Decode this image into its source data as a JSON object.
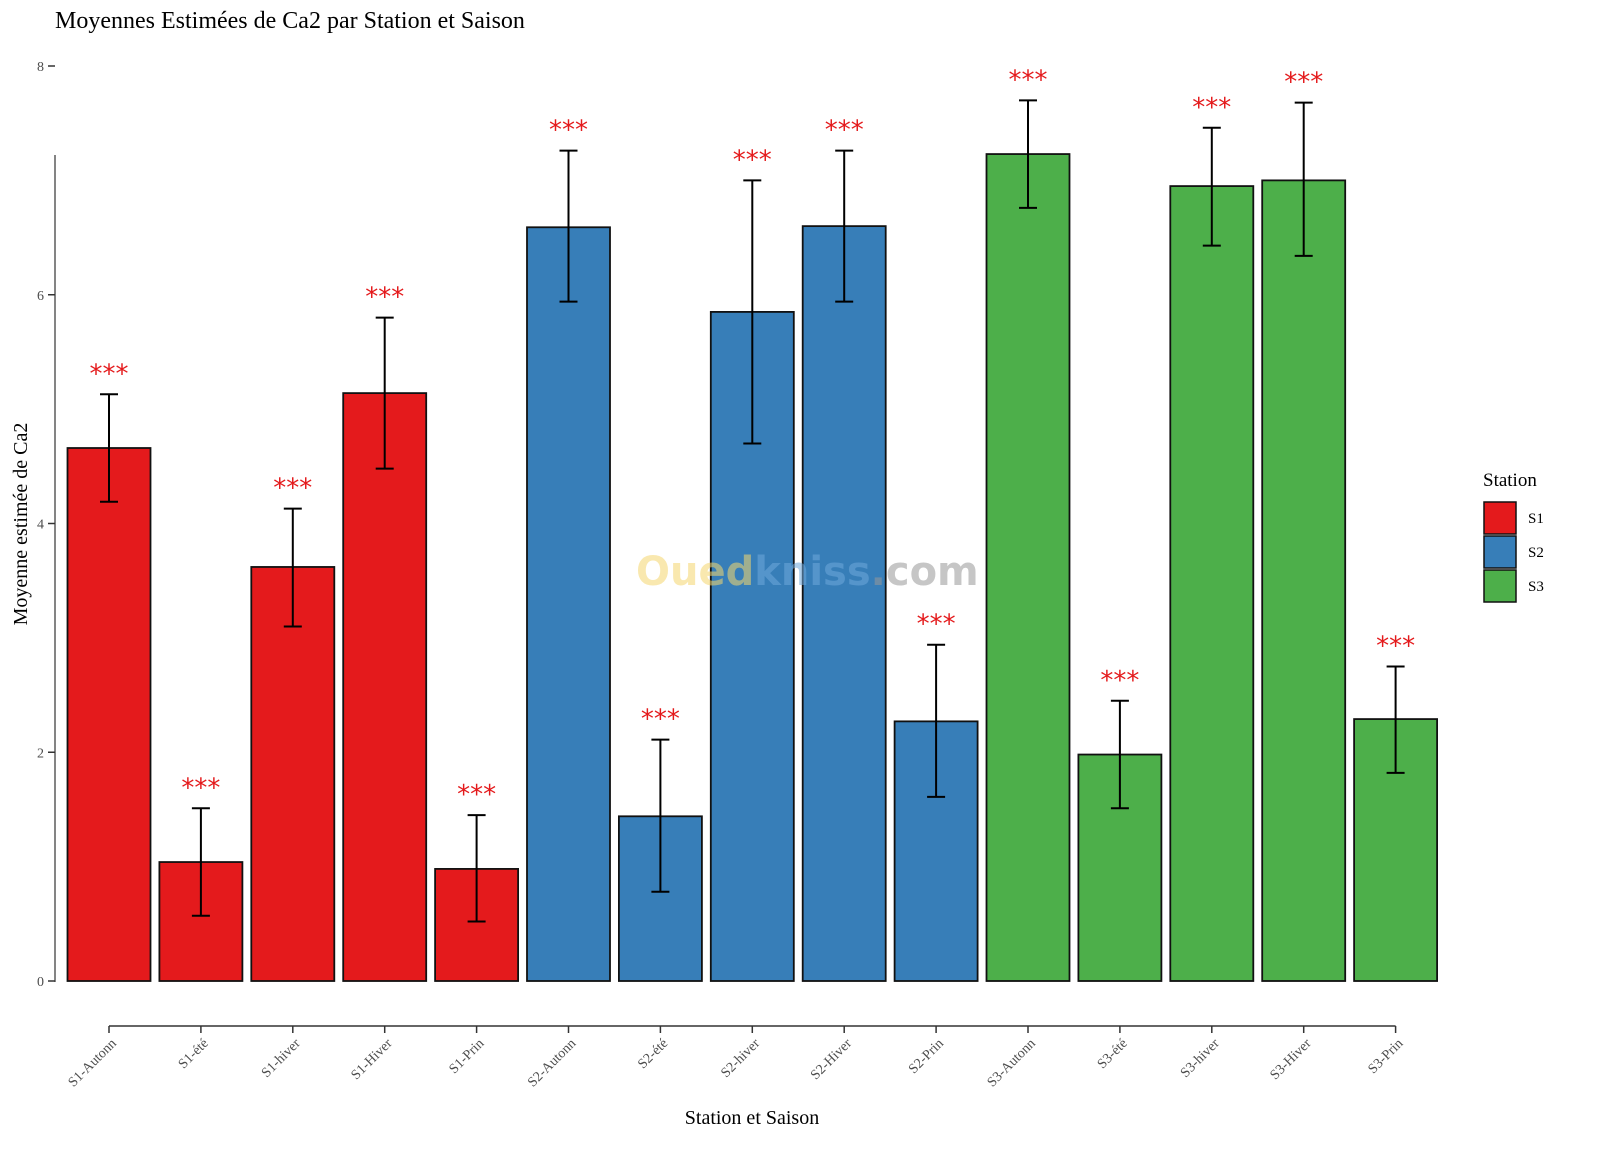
{
  "chart_data": {
    "type": "bar",
    "title": "Moyennes Estimées de Ca2 par Station et Saison",
    "xlabel": "Station et Saison",
    "ylabel": "Moyenne estimée de Ca2",
    "ylim": [
      0,
      8
    ],
    "yticks": [
      0,
      2,
      4,
      6,
      8
    ],
    "grid": false,
    "legend": {
      "title": "Station",
      "placement": "right",
      "entries": [
        {
          "label": "S1",
          "color": "#e41a1c"
        },
        {
          "label": "S2",
          "color": "#377eb8"
        },
        {
          "label": "S3",
          "color": "#4daf4a"
        }
      ]
    },
    "categories": [
      "S1-Autonn",
      "S1-été",
      "S1-hiver",
      "S1-Hiver",
      "S1-Prin",
      "S2-Autonn",
      "S2-été",
      "S2-hiver",
      "S2-Hiver",
      "S2-Prin",
      "S3-Autonn",
      "S3-été",
      "S3-hiver",
      "S3-Hiver",
      "S3-Prin"
    ],
    "groups": [
      "S1",
      "S1",
      "S1",
      "S1",
      "S1",
      "S2",
      "S2",
      "S2",
      "S2",
      "S2",
      "S3",
      "S3",
      "S3",
      "S3",
      "S3"
    ],
    "values": [
      4.66,
      1.04,
      3.62,
      5.14,
      0.98,
      6.59,
      1.44,
      5.85,
      6.6,
      2.27,
      7.23,
      1.98,
      6.95,
      7.0,
      2.29
    ],
    "error_lower": [
      4.19,
      0.57,
      3.1,
      4.48,
      0.52,
      5.94,
      0.78,
      4.7,
      5.94,
      1.61,
      6.76,
      1.51,
      6.43,
      6.34,
      1.82
    ],
    "error_upper": [
      5.13,
      1.51,
      4.13,
      5.8,
      1.45,
      7.26,
      2.11,
      7.0,
      7.26,
      2.94,
      7.7,
      2.45,
      7.46,
      7.68,
      2.75
    ],
    "significance": [
      "***",
      "***",
      "***",
      "***",
      "***",
      "***",
      "***",
      "***",
      "***",
      "***",
      "***",
      "***",
      "***",
      "***",
      "***"
    ],
    "significance_color": "#e41a1c"
  },
  "watermark": {
    "part1": "Oued",
    "part2": "kniss",
    "part3": ".com",
    "colors": [
      "#f5d76e",
      "#6fa8dc",
      "#999999"
    ]
  }
}
